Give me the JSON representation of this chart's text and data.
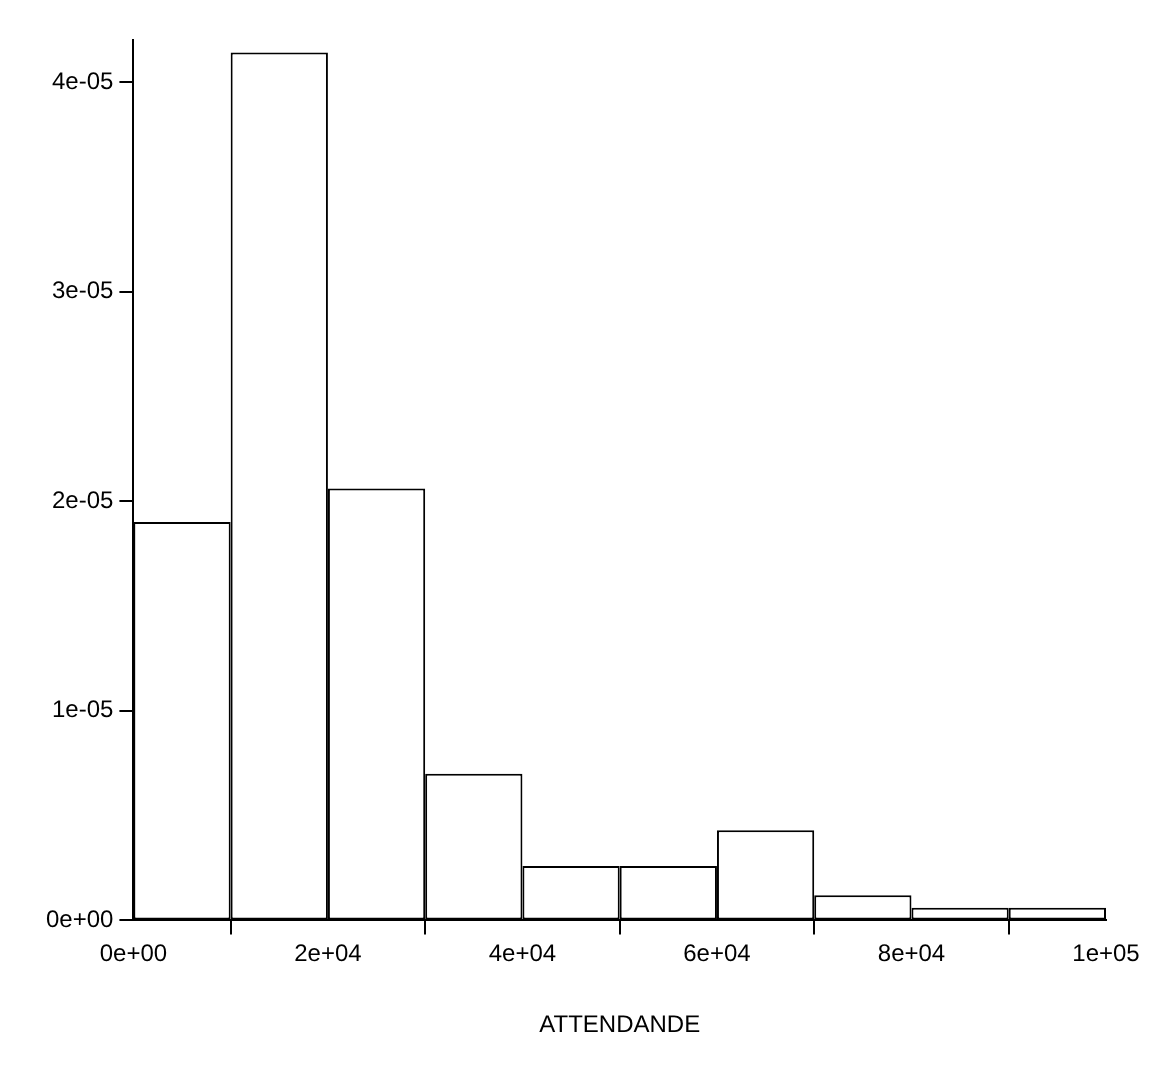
{
  "chart_data": {
    "type": "histogram",
    "xlabel": "ATTENDANDE",
    "bins": [
      0,
      10000,
      20000,
      30000,
      40000,
      50000,
      60000,
      70000,
      80000,
      90000,
      100000
    ],
    "values": [
      1.9e-05,
      4.14e-05,
      2.06e-05,
      7e-06,
      2.6e-06,
      2.6e-06,
      4.3e-06,
      1.2e-06,
      6e-07,
      6e-07
    ],
    "color": "#ffffff",
    "xlim": [
      0,
      100000
    ],
    "xticks": [
      {
        "value": 0,
        "label": "0e+00"
      },
      {
        "value": 20000,
        "label": "2e+04"
      },
      {
        "value": 40000,
        "label": "4e+04"
      },
      {
        "value": 60000,
        "label": "6e+04"
      },
      {
        "value": 80000,
        "label": "8e+04"
      },
      {
        "value": 100000,
        "label": "1e+05"
      }
    ],
    "ylim": [
      0,
      4.2e-05
    ],
    "yticks": [
      {
        "value": 0,
        "label": "0e+00"
      },
      {
        "value": 1e-05,
        "label": "1e-05"
      },
      {
        "value": 2e-05,
        "label": "2e-05"
      },
      {
        "value": 3e-05,
        "label": "3e-05"
      },
      {
        "value": 4e-05,
        "label": "4e-05"
      }
    ],
    "grid": false,
    "legend": false
  }
}
